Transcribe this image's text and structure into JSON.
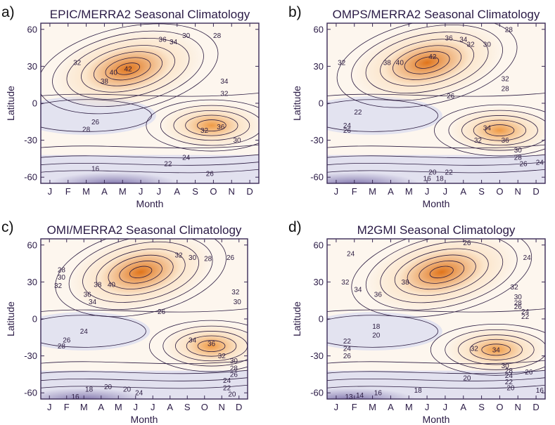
{
  "figure": {
    "colors": {
      "warm_deep": "#e0741a",
      "warm_light": "#fbe3c6",
      "neutral": "#fdf6ee",
      "cool_light": "#e2e1ef",
      "cool_deep": "#7b6fa8",
      "contour": "#2b1b40",
      "frame": "#3a2a55"
    }
  },
  "chart_data": [
    {
      "type": "contour",
      "panel_label": "a)",
      "title": "EPIC/MERRA2 Seasonal Climatology",
      "xlabel": "Month",
      "ylabel": "Latitude",
      "x_ticks": [
        "J",
        "F",
        "M",
        "A",
        "M",
        "J",
        "J",
        "A",
        "S",
        "O",
        "N",
        "D"
      ],
      "y_ticks": [
        60,
        30,
        0,
        -30,
        -60
      ],
      "ylim": [
        -65,
        65
      ],
      "max_center": {
        "month_index": 4.3,
        "lat": 28,
        "value": 42
      },
      "sh_center": {
        "month_index": 8.9,
        "lat": -18,
        "value": 36
      },
      "min_center": {
        "month_index": 3.5,
        "lat": -60,
        "value": 16
      },
      "contour_labels": [
        {
          "text": "42",
          "month_index": 4.3,
          "lat": 28
        },
        {
          "text": "40",
          "month_index": 3.5,
          "lat": 25
        },
        {
          "text": "38",
          "month_index": 3.0,
          "lat": 18
        },
        {
          "text": "36",
          "month_index": 6.2,
          "lat": 52
        },
        {
          "text": "34",
          "month_index": 6.8,
          "lat": 50
        },
        {
          "text": "32",
          "month_index": 1.5,
          "lat": 33
        },
        {
          "text": "30",
          "month_index": 7.5,
          "lat": 55
        },
        {
          "text": "28",
          "month_index": 9.2,
          "lat": 55
        },
        {
          "text": "34",
          "month_index": 9.6,
          "lat": 18
        },
        {
          "text": "32",
          "month_index": 9.6,
          "lat": 8
        },
        {
          "text": "26",
          "month_index": 2.5,
          "lat": -15
        },
        {
          "text": "28",
          "month_index": 2.0,
          "lat": -21
        },
        {
          "text": "36",
          "month_index": 9.4,
          "lat": -19
        },
        {
          "text": "32",
          "month_index": 8.5,
          "lat": -22
        },
        {
          "text": "30",
          "month_index": 10.3,
          "lat": -30
        },
        {
          "text": "24",
          "month_index": 7.5,
          "lat": -44
        },
        {
          "text": "22",
          "month_index": 6.5,
          "lat": -49
        },
        {
          "text": "26",
          "month_index": 8.8,
          "lat": -57
        },
        {
          "text": "16",
          "month_index": 2.5,
          "lat": -53
        }
      ]
    },
    {
      "type": "contour",
      "panel_label": "b)",
      "title": "OMPS/MERRA2 Seasonal Climatology",
      "xlabel": "Month",
      "ylabel": "Latitude",
      "x_ticks": [
        "J",
        "F",
        "M",
        "A",
        "M",
        "J",
        "J",
        "A",
        "S",
        "O",
        "N",
        "D"
      ],
      "y_ticks": [
        60,
        30,
        0,
        -30,
        -60
      ],
      "ylim": [
        -65,
        65
      ],
      "max_center": {
        "month_index": 5.0,
        "lat": 33,
        "value": 42
      },
      "sh_center": {
        "month_index": 9.0,
        "lat": -22,
        "value": 36
      },
      "min_center": {
        "month_index": 1.0,
        "lat": -60,
        "value": 16
      },
      "contour_labels": [
        {
          "text": "42",
          "month_index": 5.3,
          "lat": 38
        },
        {
          "text": "40",
          "month_index": 3.5,
          "lat": 33
        },
        {
          "text": "38",
          "month_index": 2.8,
          "lat": 33
        },
        {
          "text": "36",
          "month_index": 6.2,
          "lat": 53
        },
        {
          "text": "34",
          "month_index": 7.0,
          "lat": 52
        },
        {
          "text": "32",
          "month_index": 7.4,
          "lat": 48
        },
        {
          "text": "30",
          "month_index": 8.3,
          "lat": 48
        },
        {
          "text": "28",
          "month_index": 9.5,
          "lat": 60
        },
        {
          "text": "32",
          "month_index": 0.3,
          "lat": 33
        },
        {
          "text": "32",
          "month_index": 9.3,
          "lat": 20
        },
        {
          "text": "28",
          "month_index": 9.3,
          "lat": 12
        },
        {
          "text": "26",
          "month_index": 6.3,
          "lat": 6
        },
        {
          "text": "22",
          "month_index": 1.2,
          "lat": -7
        },
        {
          "text": "24",
          "month_index": 0.6,
          "lat": -18
        },
        {
          "text": "26",
          "month_index": 0.6,
          "lat": -22
        },
        {
          "text": "34",
          "month_index": 8.3,
          "lat": -20
        },
        {
          "text": "36",
          "month_index": 9.3,
          "lat": -30
        },
        {
          "text": "32",
          "month_index": 7.8,
          "lat": -30
        },
        {
          "text": "30",
          "month_index": 10.0,
          "lat": -38
        },
        {
          "text": "28",
          "month_index": 10.0,
          "lat": -44
        },
        {
          "text": "26",
          "month_index": 10.3,
          "lat": -49
        },
        {
          "text": "24",
          "month_index": 11.2,
          "lat": -48
        },
        {
          "text": "20",
          "month_index": 5.3,
          "lat": -56
        },
        {
          "text": "22",
          "month_index": 6.2,
          "lat": -56
        },
        {
          "text": "18",
          "month_index": 5.7,
          "lat": -61
        },
        {
          "text": "16",
          "month_index": 5.0,
          "lat": -61
        }
      ]
    },
    {
      "type": "contour",
      "panel_label": "c)",
      "title": "OMI/MERRA2 Seasonal Climatology",
      "xlabel": "Month",
      "ylabel": "Latitude",
      "x_ticks": [
        "J",
        "F",
        "M",
        "A",
        "M",
        "J",
        "J",
        "A",
        "S",
        "O",
        "N",
        "D"
      ],
      "y_ticks": [
        60,
        30,
        0,
        -30,
        -60
      ],
      "ylim": [
        -65,
        65
      ],
      "max_center": {
        "month_index": 5.3,
        "lat": 38,
        "value": 40
      },
      "sh_center": {
        "month_index": 9.4,
        "lat": -22,
        "value": 36
      },
      "min_center": {
        "month_index": 2.0,
        "lat": -62,
        "value": 16
      },
      "contour_labels": [
        {
          "text": "40",
          "month_index": 3.6,
          "lat": 28
        },
        {
          "text": "38",
          "month_index": 2.8,
          "lat": 28
        },
        {
          "text": "36",
          "month_index": 2.2,
          "lat": 20
        },
        {
          "text": "34",
          "month_index": 2.5,
          "lat": 14
        },
        {
          "text": "32",
          "month_index": 7.5,
          "lat": 52
        },
        {
          "text": "30",
          "month_index": 8.3,
          "lat": 50
        },
        {
          "text": "28",
          "month_index": 9.2,
          "lat": 49
        },
        {
          "text": "26",
          "month_index": 10.5,
          "lat": 50
        },
        {
          "text": "28",
          "month_index": 0.7,
          "lat": 40
        },
        {
          "text": "30",
          "month_index": 0.7,
          "lat": 34
        },
        {
          "text": "32",
          "month_index": 0.5,
          "lat": 27
        },
        {
          "text": "32",
          "month_index": 10.8,
          "lat": 22
        },
        {
          "text": "30",
          "month_index": 10.9,
          "lat": 14
        },
        {
          "text": "26",
          "month_index": 6.5,
          "lat": 6
        },
        {
          "text": "26",
          "month_index": 1.0,
          "lat": -17
        },
        {
          "text": "28",
          "month_index": 0.7,
          "lat": -22
        },
        {
          "text": "24",
          "month_index": 2.0,
          "lat": -10
        },
        {
          "text": "34",
          "month_index": 8.3,
          "lat": -17
        },
        {
          "text": "36",
          "month_index": 9.4,
          "lat": -20
        },
        {
          "text": "32",
          "month_index": 10.0,
          "lat": -30
        },
        {
          "text": "30",
          "month_index": 10.7,
          "lat": -34
        },
        {
          "text": "28",
          "month_index": 10.7,
          "lat": -40
        },
        {
          "text": "26",
          "month_index": 10.7,
          "lat": -45
        },
        {
          "text": "24",
          "month_index": 10.3,
          "lat": -50
        },
        {
          "text": "22",
          "month_index": 10.3,
          "lat": -56
        },
        {
          "text": "20",
          "month_index": 10.6,
          "lat": -61
        },
        {
          "text": "18",
          "month_index": 2.3,
          "lat": -57
        },
        {
          "text": "20",
          "month_index": 3.4,
          "lat": -55
        },
        {
          "text": "20",
          "month_index": 4.5,
          "lat": -57
        },
        {
          "text": "24",
          "month_index": 5.2,
          "lat": -60
        },
        {
          "text": "16",
          "month_index": 1.5,
          "lat": -63
        }
      ]
    },
    {
      "type": "contour",
      "panel_label": "d)",
      "title": "M2GMI Seasonal Climatology",
      "xlabel": "Month",
      "ylabel": "Latitude",
      "x_ticks": [
        "J",
        "F",
        "M",
        "A",
        "M",
        "J",
        "J",
        "A",
        "S",
        "O",
        "N",
        "D"
      ],
      "y_ticks": [
        60,
        30,
        0,
        -30,
        -60
      ],
      "ylim": [
        -65,
        65
      ],
      "max_center": {
        "month_index": 5.8,
        "lat": 38,
        "value": 38
      },
      "sh_center": {
        "month_index": 8.8,
        "lat": -25,
        "value": 34
      },
      "min_center": {
        "month_index": 0.8,
        "lat": -63,
        "value": 13
      },
      "contour_labels": [
        {
          "text": "26",
          "month_index": 7.2,
          "lat": 62
        },
        {
          "text": "24",
          "month_index": 0.8,
          "lat": 53
        },
        {
          "text": "24",
          "month_index": 10.5,
          "lat": 50
        },
        {
          "text": "32",
          "month_index": 0.5,
          "lat": 30
        },
        {
          "text": "34",
          "month_index": 1.2,
          "lat": 24
        },
        {
          "text": "36",
          "month_index": 2.3,
          "lat": 20
        },
        {
          "text": "38",
          "month_index": 3.8,
          "lat": 30
        },
        {
          "text": "32",
          "month_index": 9.8,
          "lat": 26
        },
        {
          "text": "30",
          "month_index": 10.0,
          "lat": 18
        },
        {
          "text": "28",
          "month_index": 10.0,
          "lat": 13
        },
        {
          "text": "26",
          "month_index": 10.0,
          "lat": 10
        },
        {
          "text": "24",
          "month_index": 10.4,
          "lat": 6
        },
        {
          "text": "22",
          "month_index": 10.4,
          "lat": 2
        },
        {
          "text": "18",
          "month_index": 2.2,
          "lat": -6
        },
        {
          "text": "20",
          "month_index": 2.2,
          "lat": -13
        },
        {
          "text": "22",
          "month_index": 0.6,
          "lat": -18
        },
        {
          "text": "24",
          "month_index": 0.6,
          "lat": -24
        },
        {
          "text": "26",
          "month_index": 0.6,
          "lat": -30
        },
        {
          "text": "32",
          "month_index": 7.6,
          "lat": -24
        },
        {
          "text": "34",
          "month_index": 8.8,
          "lat": -25
        },
        {
          "text": "30",
          "month_index": 9.3,
          "lat": -38
        },
        {
          "text": "28",
          "month_index": 9.5,
          "lat": -42
        },
        {
          "text": "26",
          "month_index": 10.6,
          "lat": -43
        },
        {
          "text": "20",
          "month_index": 7.2,
          "lat": -48
        },
        {
          "text": "24",
          "month_index": 9.5,
          "lat": -46
        },
        {
          "text": "22",
          "month_index": 9.5,
          "lat": -51
        },
        {
          "text": "20",
          "month_index": 9.6,
          "lat": -56
        },
        {
          "text": "18",
          "month_index": 4.5,
          "lat": -58
        },
        {
          "text": "16",
          "month_index": 2.3,
          "lat": -60
        },
        {
          "text": "14",
          "month_index": 1.3,
          "lat": -62
        },
        {
          "text": "13",
          "month_index": 0.7,
          "lat": -63
        },
        {
          "text": "16",
          "month_index": 11.2,
          "lat": -58
        }
      ]
    }
  ]
}
